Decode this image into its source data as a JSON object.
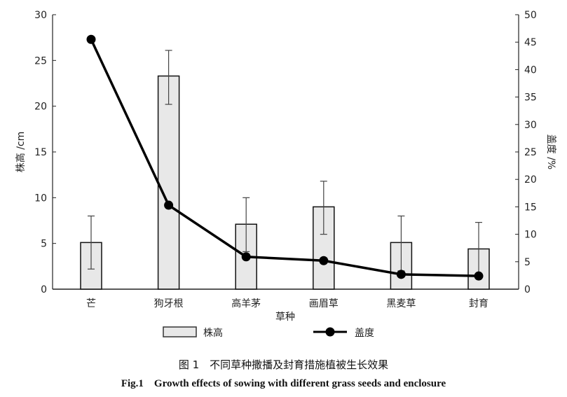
{
  "chart_data": {
    "type": "bar+line",
    "categories": [
      "芒",
      "狗牙根",
      "高羊茅",
      "画眉草",
      "黑麦草",
      "封育"
    ],
    "xlabel": "草种",
    "ylabel_left": "株高 /cm",
    "ylabel_right": "盖度 /%",
    "ylim_left": [
      0,
      30
    ],
    "ylim_right": [
      0,
      50
    ],
    "yticks_left": [
      0,
      5,
      10,
      15,
      20,
      25,
      30
    ],
    "yticks_right": [
      0,
      5,
      10,
      15,
      20,
      25,
      30,
      35,
      40,
      45,
      50
    ],
    "grid": false,
    "legend_position": "bottom",
    "series": [
      {
        "name": "株高",
        "type": "bar",
        "axis": "left",
        "values": [
          5.1,
          23.3,
          7.1,
          9.0,
          5.1,
          4.4
        ],
        "error_low": [
          2.2,
          20.2,
          4.1,
          6.0,
          2.0,
          1.5
        ],
        "error_high": [
          8.0,
          26.1,
          10.0,
          11.8,
          8.0,
          7.3
        ],
        "color": "#e8e8e8"
      },
      {
        "name": "盖度",
        "type": "line",
        "axis": "right",
        "values": [
          45.5,
          15.3,
          5.9,
          5.2,
          2.7,
          2.4
        ],
        "color": "#000000"
      }
    ]
  },
  "caption": {
    "cn": "图 1　不同草种撒播及封育措施植被生长效果",
    "en": "Fig.1　Growth effects of sowing with different grass seeds and enclosure"
  }
}
